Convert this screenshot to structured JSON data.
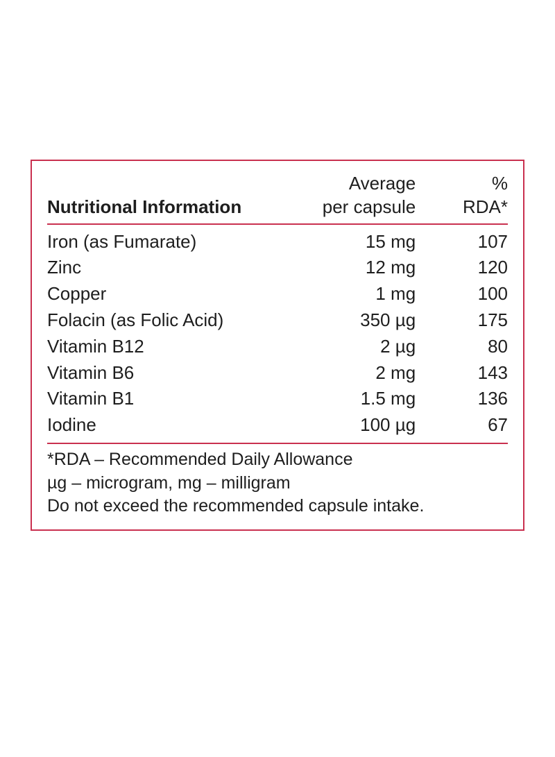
{
  "colors": {
    "border": "#c9304f",
    "text": "#1e1e1e",
    "background": "#ffffff"
  },
  "table": {
    "header": {
      "title": "Nutritional Information",
      "avg_line1": "Average",
      "avg_line2": "per capsule",
      "rda_line1": "%",
      "rda_line2": "RDA*"
    },
    "rows": [
      {
        "name": "Iron (as Fumarate)",
        "avg": "15 mg",
        "rda": "107"
      },
      {
        "name": "Zinc",
        "avg": "12 mg",
        "rda": "120"
      },
      {
        "name": "Copper",
        "avg": "1 mg",
        "rda": "100"
      },
      {
        "name": "Folacin (as Folic Acid)",
        "avg": "350 µg",
        "rda": "175"
      },
      {
        "name": "Vitamin B12",
        "avg": "2 µg",
        "rda": "80"
      },
      {
        "name": "Vitamin B6",
        "avg": "2 mg",
        "rda": "143"
      },
      {
        "name": "Vitamin B1",
        "avg": "1.5 mg",
        "rda": "136"
      },
      {
        "name": "Iodine",
        "avg": "100 µg",
        "rda": "67"
      }
    ],
    "footnotes": [
      "*RDA – Recommended Daily Allowance",
      "µg – microgram, mg – milligram",
      "Do not exceed the recommended capsule intake."
    ]
  }
}
